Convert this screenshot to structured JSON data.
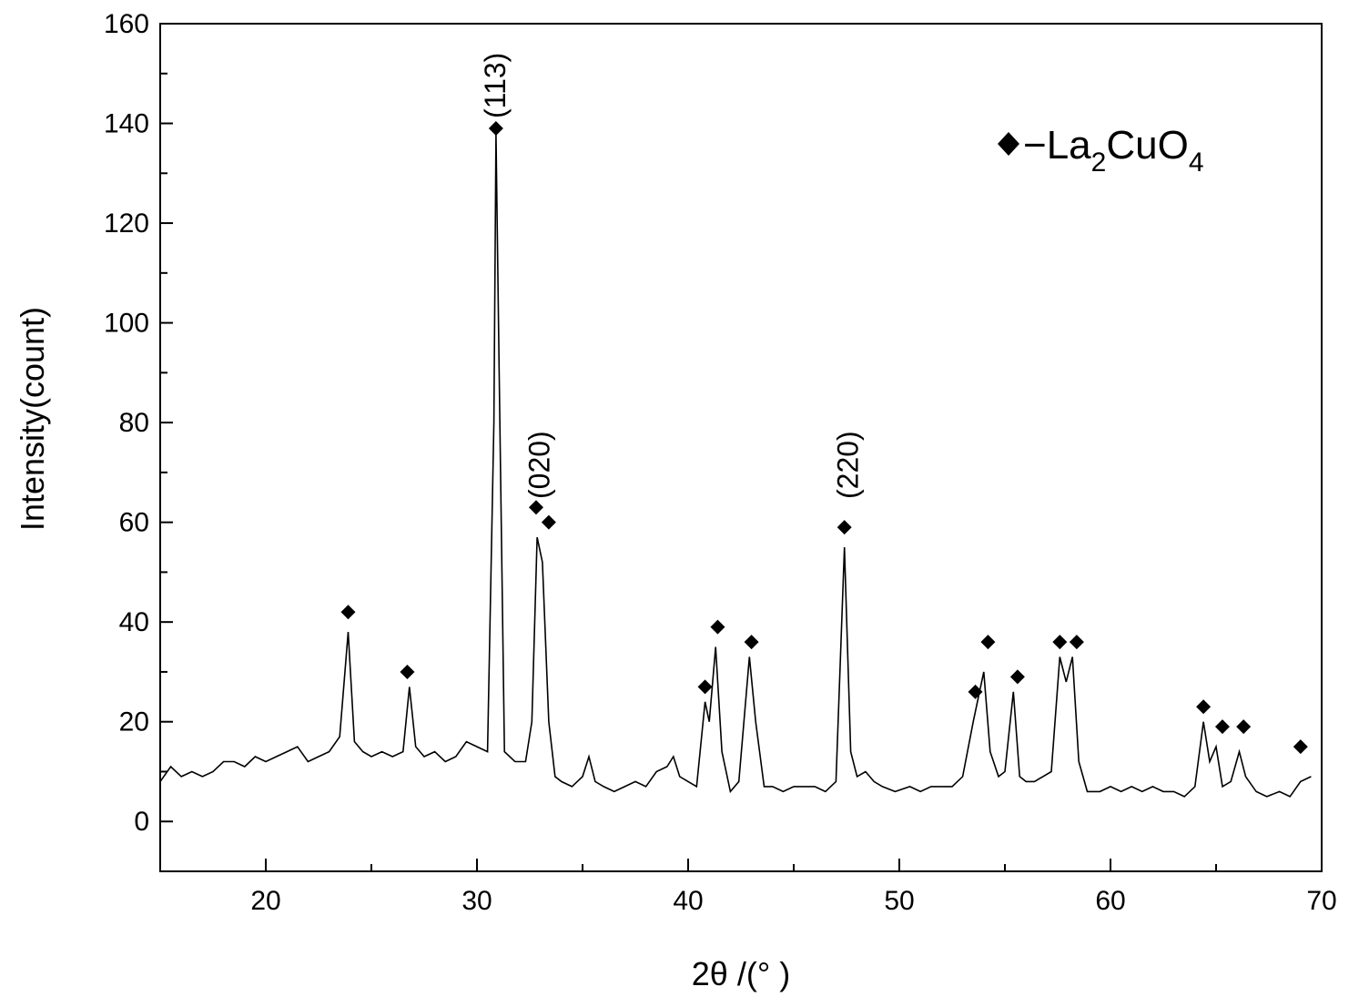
{
  "chart_data": {
    "type": "line",
    "title": "",
    "xlabel": "2θ /(°  )",
    "ylabel": "Intensity(count)",
    "xlim": [
      15,
      70
    ],
    "ylim": [
      -10,
      160
    ],
    "grid": false,
    "x_ticks": [
      20,
      30,
      40,
      50,
      60,
      70
    ],
    "x_tick_labels": [
      "20",
      "30",
      "40",
      "50",
      "60",
      "70"
    ],
    "y_ticks": [
      0,
      20,
      40,
      60,
      80,
      100,
      120,
      140,
      160
    ],
    "y_tick_labels": [
      "0",
      "20",
      "40",
      "60",
      "80",
      "100",
      "120",
      "140",
      "160"
    ],
    "legend": {
      "placement": "top-right",
      "marker": "diamond",
      "text": "−La",
      "sub1": "2",
      "mid": "CuO",
      "sub2": "4"
    },
    "series": [
      {
        "points": [
          [
            15.0,
            8
          ],
          [
            15.5,
            11
          ],
          [
            16.0,
            9
          ],
          [
            16.5,
            10
          ],
          [
            17.0,
            9
          ],
          [
            17.5,
            10
          ],
          [
            18.0,
            12
          ],
          [
            18.5,
            12
          ],
          [
            19.0,
            11
          ],
          [
            19.5,
            13
          ],
          [
            20.0,
            12
          ],
          [
            20.5,
            13
          ],
          [
            21.0,
            14
          ],
          [
            21.5,
            15
          ],
          [
            22.0,
            12
          ],
          [
            22.5,
            13
          ],
          [
            23.0,
            14
          ],
          [
            23.5,
            17
          ],
          [
            23.9,
            38
          ],
          [
            24.2,
            16
          ],
          [
            24.6,
            14
          ],
          [
            25.0,
            13
          ],
          [
            25.5,
            14
          ],
          [
            26.0,
            13
          ],
          [
            26.5,
            14
          ],
          [
            26.8,
            27
          ],
          [
            27.1,
            15
          ],
          [
            27.5,
            13
          ],
          [
            28.0,
            14
          ],
          [
            28.5,
            12
          ],
          [
            29.0,
            13
          ],
          [
            29.5,
            16
          ],
          [
            30.0,
            15
          ],
          [
            30.5,
            14
          ],
          [
            30.8,
            80
          ],
          [
            30.9,
            138
          ],
          [
            31.05,
            90
          ],
          [
            31.3,
            14
          ],
          [
            31.8,
            12
          ],
          [
            32.3,
            12
          ],
          [
            32.6,
            20
          ],
          [
            32.85,
            57
          ],
          [
            33.1,
            52
          ],
          [
            33.4,
            20
          ],
          [
            33.7,
            9
          ],
          [
            34.0,
            8
          ],
          [
            34.5,
            7
          ],
          [
            35.0,
            9
          ],
          [
            35.3,
            13
          ],
          [
            35.6,
            8
          ],
          [
            36.0,
            7
          ],
          [
            36.5,
            6
          ],
          [
            37.0,
            7
          ],
          [
            37.5,
            8
          ],
          [
            38.0,
            7
          ],
          [
            38.5,
            10
          ],
          [
            39.0,
            11
          ],
          [
            39.3,
            13
          ],
          [
            39.6,
            9
          ],
          [
            40.0,
            8
          ],
          [
            40.4,
            7
          ],
          [
            40.8,
            24
          ],
          [
            41.0,
            20
          ],
          [
            41.3,
            35
          ],
          [
            41.6,
            14
          ],
          [
            42.0,
            6
          ],
          [
            42.4,
            8
          ],
          [
            42.9,
            33
          ],
          [
            43.2,
            20
          ],
          [
            43.6,
            7
          ],
          [
            44.0,
            7
          ],
          [
            44.5,
            6
          ],
          [
            45.0,
            7
          ],
          [
            45.5,
            7
          ],
          [
            46.0,
            7
          ],
          [
            46.5,
            6
          ],
          [
            47.0,
            8
          ],
          [
            47.4,
            55
          ],
          [
            47.7,
            14
          ],
          [
            48.0,
            9
          ],
          [
            48.4,
            10
          ],
          [
            48.8,
            8
          ],
          [
            49.2,
            7
          ],
          [
            49.8,
            6
          ],
          [
            50.5,
            7
          ],
          [
            51.0,
            6
          ],
          [
            51.5,
            7
          ],
          [
            52.0,
            7
          ],
          [
            52.5,
            7
          ],
          [
            53.0,
            9
          ],
          [
            53.5,
            20
          ],
          [
            53.7,
            24
          ],
          [
            54.0,
            30
          ],
          [
            54.3,
            14
          ],
          [
            54.7,
            9
          ],
          [
            55.0,
            10
          ],
          [
            55.4,
            26
          ],
          [
            55.7,
            9
          ],
          [
            56.0,
            8
          ],
          [
            56.4,
            8
          ],
          [
            56.8,
            9
          ],
          [
            57.2,
            10
          ],
          [
            57.6,
            33
          ],
          [
            57.9,
            28
          ],
          [
            58.2,
            33
          ],
          [
            58.5,
            12
          ],
          [
            58.9,
            6
          ],
          [
            59.5,
            6
          ],
          [
            60.0,
            7
          ],
          [
            60.5,
            6
          ],
          [
            61.0,
            7
          ],
          [
            61.5,
            6
          ],
          [
            62.0,
            7
          ],
          [
            62.5,
            6
          ],
          [
            63.0,
            6
          ],
          [
            63.5,
            5
          ],
          [
            64.0,
            7
          ],
          [
            64.4,
            20
          ],
          [
            64.7,
            12
          ],
          [
            65.0,
            15
          ],
          [
            65.3,
            7
          ],
          [
            65.7,
            8
          ],
          [
            66.1,
            14
          ],
          [
            66.4,
            9
          ],
          [
            66.9,
            6
          ],
          [
            67.4,
            5
          ],
          [
            68.0,
            6
          ],
          [
            68.5,
            5
          ],
          [
            69.0,
            8
          ],
          [
            69.5,
            9
          ]
        ]
      }
    ],
    "markers": [
      {
        "x": 23.9,
        "y": 42
      },
      {
        "x": 26.7,
        "y": 30
      },
      {
        "x": 30.9,
        "y": 139
      },
      {
        "x": 32.8,
        "y": 63
      },
      {
        "x": 33.4,
        "y": 60
      },
      {
        "x": 40.8,
        "y": 27
      },
      {
        "x": 41.4,
        "y": 39
      },
      {
        "x": 43.0,
        "y": 36
      },
      {
        "x": 47.4,
        "y": 59
      },
      {
        "x": 53.6,
        "y": 26
      },
      {
        "x": 54.2,
        "y": 36
      },
      {
        "x": 55.6,
        "y": 29
      },
      {
        "x": 57.6,
        "y": 36
      },
      {
        "x": 58.4,
        "y": 36
      },
      {
        "x": 64.4,
        "y": 23
      },
      {
        "x": 65.3,
        "y": 19
      },
      {
        "x": 66.3,
        "y": 19
      },
      {
        "x": 69.0,
        "y": 15
      }
    ],
    "peak_labels": [
      {
        "text": "(113)",
        "x": 30.9
      },
      {
        "text": "(020)",
        "x": 33.0
      },
      {
        "text": "(220)",
        "x": 47.6
      }
    ]
  }
}
